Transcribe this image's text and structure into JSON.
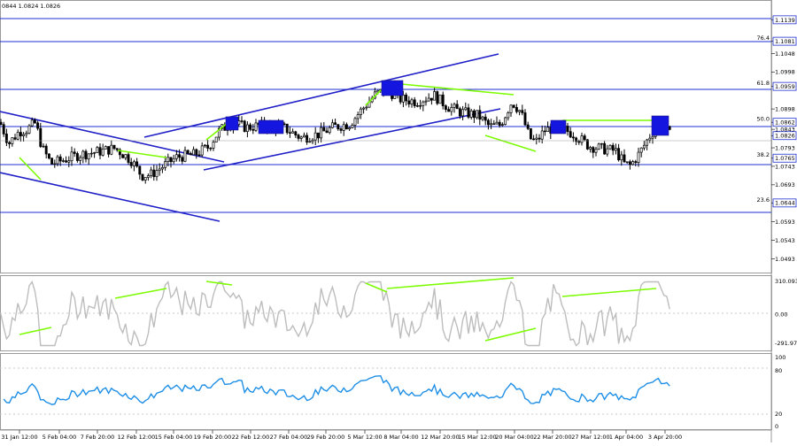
{
  "header": {
    "ohlc_text": "0844 1.0824 1.0826"
  },
  "colors": {
    "fibo_line": "#1f2fd0",
    "channel_line": "#1f1fc8",
    "divergence_line": "#7CFC00",
    "marker_fill": "#1515e0",
    "cci_line": "#bdbdbd",
    "rsi_line": "#1e8fe6"
  },
  "chart_data": [
    {
      "type": "candlestick",
      "title": "",
      "ylim": [
        1.0475,
        1.1159
      ],
      "y_tick_labels": [
        "1.1139",
        "1.1081",
        "1.1048",
        "1.0998",
        "1.0959",
        "1.0898",
        "1.0862",
        "1.0843",
        "1.0826",
        "1.0793",
        "1.0765",
        "1.0743",
        "1.0693",
        "1.0644",
        "1.0593",
        "1.0543",
        "1.0493"
      ],
      "x_tick_labels": [
        "31 Jan 12:00",
        "5 Feb 04:00",
        "7 Feb 20:00",
        "12 Feb 12:00",
        "15 Feb 04:00",
        "19 Feb 20:00",
        "22 Feb 12:00",
        "27 Feb 04:00",
        "29 Feb 20:00",
        "5 Mar 12:00",
        "8 Mar 04:00",
        "12 Mar 20:00",
        "15 Mar 12:00",
        "20 Mar 04:00",
        "22 Mar 20:00",
        "27 Mar 12:00",
        "1 Apr 04:00",
        "3 Apr 20:00"
      ],
      "fibo_levels": [
        {
          "label": "",
          "price": "1.1139"
        },
        {
          "label": "76.4",
          "price": "1.1081"
        },
        {
          "label": "61.8",
          "price": "1.0959"
        },
        {
          "label": "50.0",
          "price": "1.0862"
        },
        {
          "label": "38.2",
          "price": "1.0765"
        },
        {
          "label": "23.6",
          "price": "1.0644"
        }
      ],
      "current_price": "1.0826",
      "close_path": [
        [
          0,
          1.0862
        ],
        [
          10,
          1.0805
        ],
        [
          22,
          1.0838
        ],
        [
          30,
          1.0842
        ],
        [
          40,
          1.086
        ],
        [
          48,
          1.079
        ],
        [
          58,
          1.075
        ],
        [
          72,
          1.076
        ],
        [
          90,
          1.0775
        ],
        [
          110,
          1.0782
        ],
        [
          130,
          1.0792
        ],
        [
          148,
          1.076
        ],
        [
          160,
          1.0718
        ],
        [
          170,
          1.072
        ],
        [
          185,
          1.0745
        ],
        [
          200,
          1.0768
        ],
        [
          220,
          1.0775
        ],
        [
          235,
          1.0795
        ],
        [
          248,
          1.084
        ],
        [
          262,
          1.086
        ],
        [
          278,
          1.0848
        ],
        [
          300,
          1.0855
        ],
        [
          322,
          1.0845
        ],
        [
          340,
          1.082
        ],
        [
          360,
          1.083
        ],
        [
          378,
          1.085
        ],
        [
          395,
          1.0858
        ],
        [
          410,
          1.09
        ],
        [
          425,
          1.094
        ],
        [
          438,
          1.0948
        ],
        [
          452,
          1.0925
        ],
        [
          470,
          1.0918
        ],
        [
          490,
          1.0935
        ],
        [
          505,
          1.0905
        ],
        [
          520,
          1.089
        ],
        [
          540,
          1.088
        ],
        [
          553,
          1.085
        ],
        [
          565,
          1.0855
        ],
        [
          578,
          1.0918
        ],
        [
          588,
          1.089
        ],
        [
          598,
          1.082
        ],
        [
          605,
          1.0808
        ],
        [
          615,
          1.084
        ],
        [
          630,
          1.085
        ],
        [
          648,
          1.083
        ],
        [
          665,
          1.0798
        ],
        [
          680,
          1.079
        ],
        [
          695,
          1.0785
        ],
        [
          705,
          1.075
        ],
        [
          712,
          1.0745
        ],
        [
          722,
          1.0778
        ],
        [
          735,
          1.083
        ],
        [
          745,
          1.0858
        ],
        [
          752,
          1.084
        ],
        [
          757,
          1.0826
        ]
      ]
    },
    {
      "type": "line",
      "title": "",
      "ylim": [
        -291.978,
        310.0935
      ],
      "y_tick_labels": [
        "310.0935",
        "0.00",
        "-291.978"
      ],
      "series": [
        {
          "values": []
        }
      ]
    },
    {
      "type": "line",
      "title": "",
      "ylim": [
        0,
        100
      ],
      "y_tick_labels": [
        "100",
        "80",
        "20",
        "0"
      ],
      "series": [
        {
          "values": []
        }
      ]
    }
  ]
}
